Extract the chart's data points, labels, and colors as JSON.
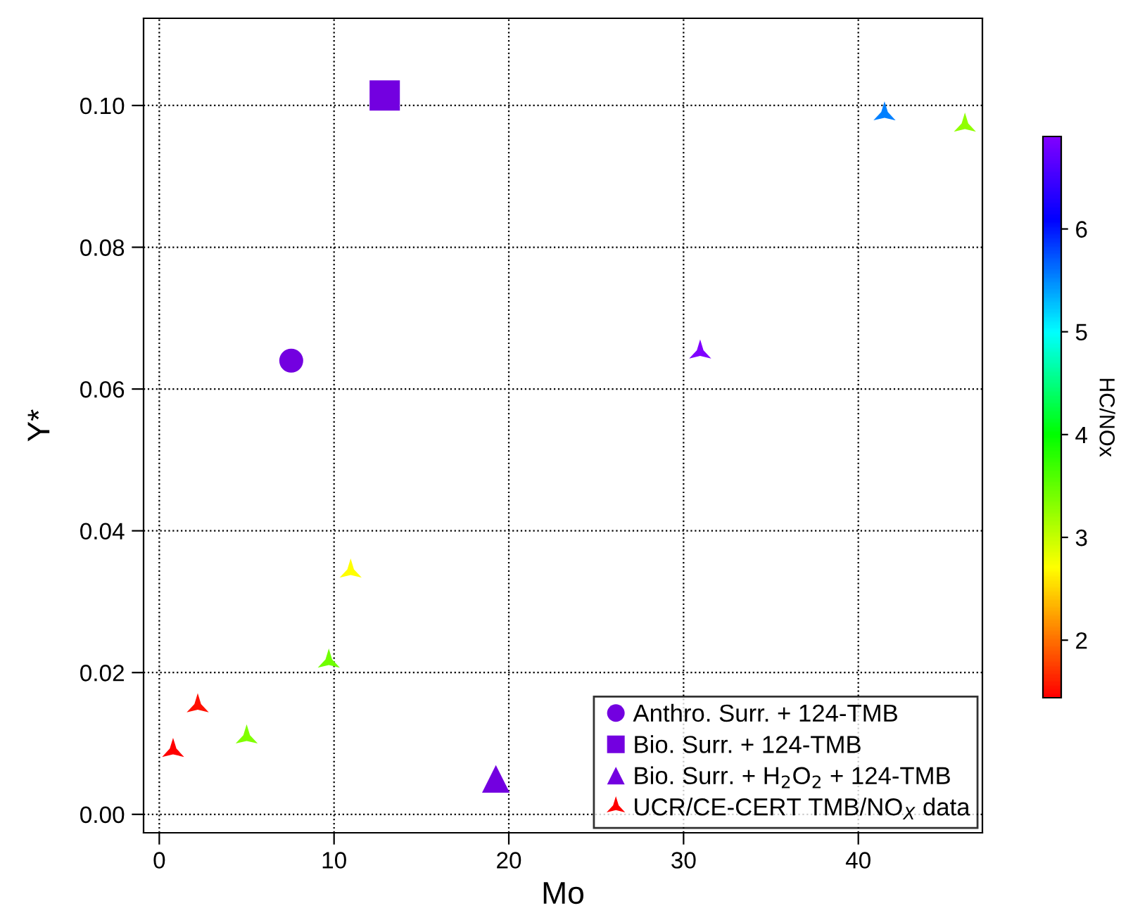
{
  "chart_data": {
    "type": "scatter",
    "xlabel": "Mo",
    "ylabel": "Y*",
    "clabel": "HC/NOx",
    "xlim": [
      -0.9,
      47.1
    ],
    "ylim": [
      -0.0026,
      0.1123
    ],
    "xticks": [
      0,
      10,
      20,
      30,
      40
    ],
    "yticks": [
      {
        "value": 0,
        "label": "0.00"
      },
      {
        "value": 0.02,
        "label": "0.02"
      },
      {
        "value": 0.04,
        "label": "0.04"
      },
      {
        "value": 0.06,
        "label": "0.06"
      },
      {
        "value": 0.08,
        "label": "0.08"
      },
      {
        "value": 0.1,
        "label": "0.10"
      }
    ],
    "clim": [
      1.44,
      6.9
    ],
    "cticks": [
      2,
      3,
      4,
      5,
      6
    ],
    "grid": true,
    "legend": "bottom right",
    "series": [
      {
        "name": "Anthro. Surr. + 124-TMB",
        "marker": "circle",
        "x": [
          7.55
        ],
        "values": [
          0.064
        ],
        "color": "#7300e0"
      },
      {
        "name": "Bio. Surr. + 124-TMB",
        "marker": "square",
        "x": [
          12.9
        ],
        "values": [
          0.1014
        ],
        "color": "#7300e0"
      },
      {
        "name": "Bio. Surr. + H$_{2}$O$_{2}$ + 124-TMB",
        "marker": "triangle",
        "x": [
          19.26
        ],
        "values": [
          0.005
        ],
        "color": "#7300e0"
      },
      {
        "name": "UCR/CE-CERT TMB/NO$_{X}$ data",
        "marker": "star",
        "x": [
          0.79,
          2.2,
          5.0,
          9.7,
          10.95,
          30.95,
          41.5,
          46.1
        ],
        "values": [
          0.009,
          0.0153,
          0.0109,
          0.0216,
          0.0343,
          0.0652,
          0.0988,
          0.0972
        ],
        "colors": [
          "#ff0000",
          "#ff1000",
          "#80ff00",
          "#70ff00",
          "#ffff00",
          "#8000ff",
          "#0080ff",
          "#90ff00"
        ]
      }
    ]
  }
}
